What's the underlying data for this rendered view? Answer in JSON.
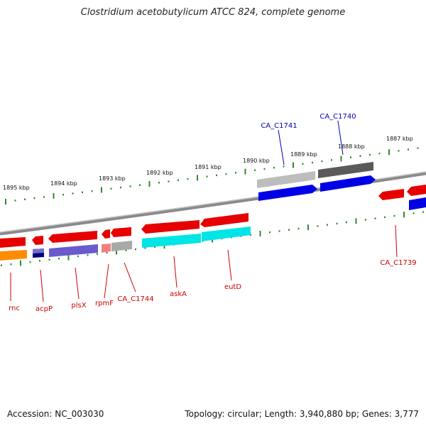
{
  "title": "Clostridium acetobutylicum ATCC 824, complete genome",
  "footer": {
    "accession": "Accession: NC_003030",
    "topology": "Topology: circular; Length: 3,940,880 bp; Genes: 3,777"
  },
  "colors": {
    "backbone": "#888888",
    "tick": "#2e8b2e",
    "label_red": "#cc0000",
    "label_blue": "#0000bb"
  },
  "ticks": [
    {
      "label": "1895 kbp"
    },
    {
      "label": "1894 kbp"
    },
    {
      "label": "1893 kbp"
    },
    {
      "label": "1892 kbp"
    },
    {
      "label": "1891 kbp"
    },
    {
      "label": "1890 kbp"
    },
    {
      "label": "1889 kbp"
    },
    {
      "label": "1888 kbp"
    },
    {
      "label": "1887 kbp"
    }
  ],
  "labels": [
    {
      "text": "rnc",
      "color": "#cc0000"
    },
    {
      "text": "acpP",
      "color": "#cc0000"
    },
    {
      "text": "plsX",
      "color": "#cc0000"
    },
    {
      "text": "rpmF",
      "color": "#cc0000"
    },
    {
      "text": "CA_C1744",
      "color": "#cc0000"
    },
    {
      "text": "askA",
      "color": "#cc0000"
    },
    {
      "text": "eutD",
      "color": "#cc0000"
    },
    {
      "text": "CA_C1739",
      "color": "#cc0000"
    },
    {
      "text": "CA_C1741",
      "color": "#0000bb"
    },
    {
      "text": "CA_C1740",
      "color": "#0000bb"
    }
  ]
}
